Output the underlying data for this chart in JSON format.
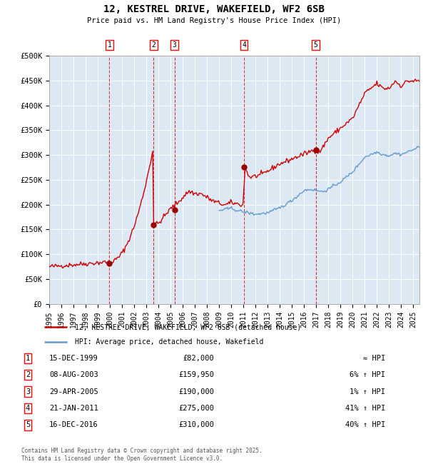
{
  "title": "12, KESTREL DRIVE, WAKEFIELD, WF2 6SB",
  "subtitle": "Price paid vs. HM Land Registry's House Price Index (HPI)",
  "background_color": "#dce9f5",
  "plot_bg_color": "#dce9f5",
  "grid_color": "#ffffff",
  "ylim": [
    0,
    500000
  ],
  "yticks": [
    0,
    50000,
    100000,
    150000,
    200000,
    250000,
    300000,
    350000,
    400000,
    450000,
    500000
  ],
  "ytick_labels": [
    "£0",
    "£50K",
    "£100K",
    "£150K",
    "£200K",
    "£250K",
    "£300K",
    "£350K",
    "£400K",
    "£450K",
    "£500K"
  ],
  "red_line_color": "#cc0000",
  "blue_line_color": "#6699cc",
  "marker_color": "#990000",
  "vline_color": "#cc3333",
  "sale_dates_x": [
    1999.96,
    2003.6,
    2005.33,
    2011.05,
    2016.96
  ],
  "sale_prices_y": [
    82000,
    159950,
    190000,
    275000,
    310000
  ],
  "sale_labels": [
    "1",
    "2",
    "3",
    "4",
    "5"
  ],
  "sale_date_labels": [
    "15-DEC-1999",
    "08-AUG-2003",
    "29-APR-2005",
    "21-JAN-2011",
    "16-DEC-2016"
  ],
  "sale_price_labels": [
    "£82,000",
    "£159,950",
    "£190,000",
    "£275,000",
    "£310,000"
  ],
  "sale_hpi_labels": [
    "≈ HPI",
    "6% ↑ HPI",
    "1% ↑ HPI",
    "41% ↑ HPI",
    "40% ↑ HPI"
  ],
  "legend_red_label": "12, KESTREL DRIVE, WAKEFIELD, WF2 6SB (detached house)",
  "legend_blue_label": "HPI: Average price, detached house, Wakefield",
  "footer": "Contains HM Land Registry data © Crown copyright and database right 2025.\nThis data is licensed under the Open Government Licence v3.0.",
  "xmin": 1995.0,
  "xmax": 2025.5
}
